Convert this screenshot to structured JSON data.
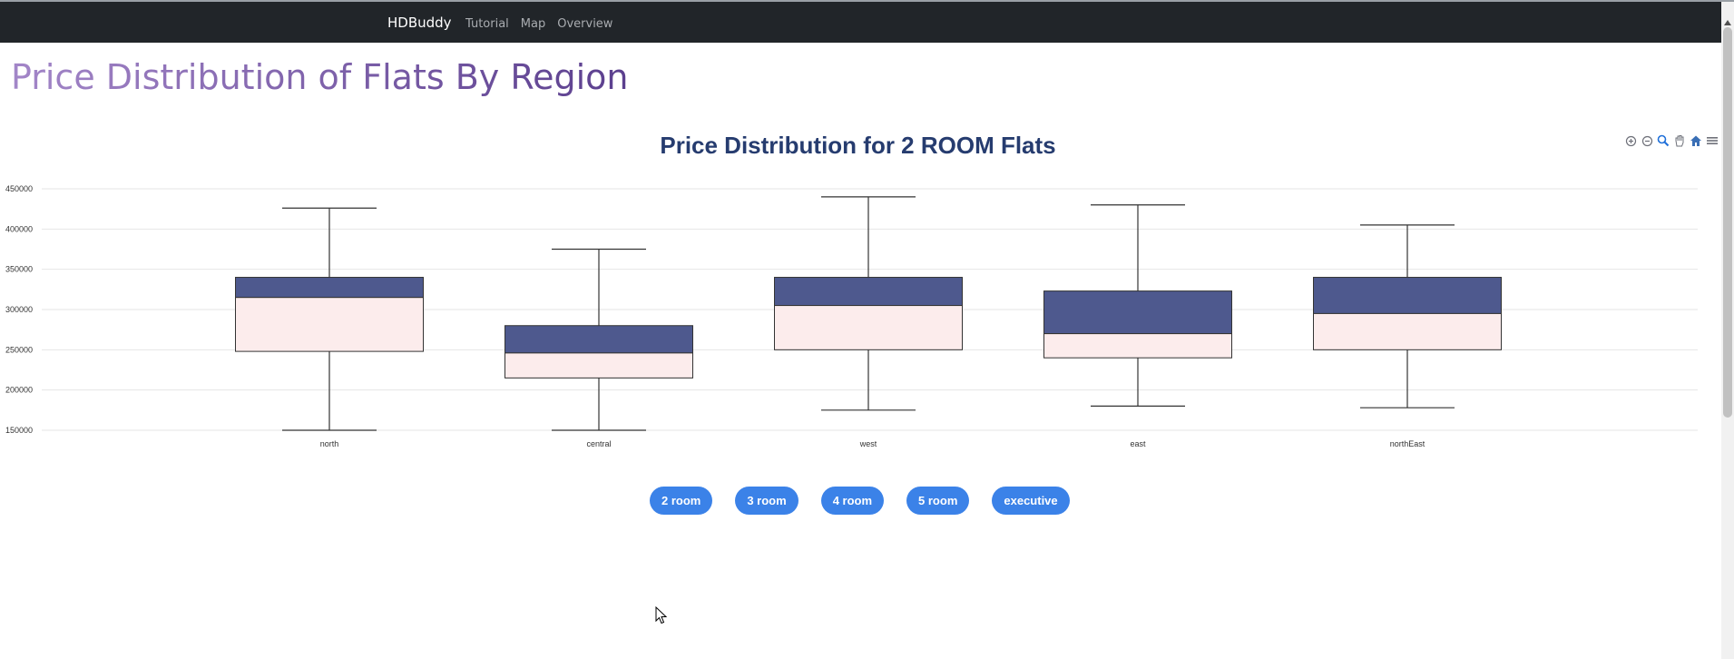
{
  "navbar": {
    "brand": "HDBuddy",
    "links": [
      "Tutorial",
      "Map",
      "Overview"
    ]
  },
  "page": {
    "title": "Price Distribution of Flats By Region"
  },
  "toolbar": {
    "icons": [
      "zoom-in-icon",
      "zoom-out-icon",
      "selection-zoom-icon",
      "pan-hand-icon",
      "home-reset-icon",
      "menu-icon"
    ]
  },
  "chart_data": {
    "type": "boxplot",
    "title": "Price Distribution for 2 ROOM Flats",
    "xlabel": "",
    "ylabel": "",
    "categories": [
      "north",
      "central",
      "west",
      "east",
      "northEast"
    ],
    "ylim": [
      150000,
      450000
    ],
    "yticks": [
      150000,
      200000,
      250000,
      300000,
      350000,
      400000,
      450000
    ],
    "ytick_labels": [
      "150000",
      "200000",
      "250000",
      "300000",
      "350000",
      "400000",
      "450000"
    ],
    "grid": true,
    "colors": {
      "upper_box": "#4e598e",
      "lower_box": "#fcecec",
      "whisker": "#333333",
      "grid": "#e6e6e6"
    },
    "series": [
      {
        "category": "north",
        "min": 150000,
        "q1": 248000,
        "median": 315000,
        "q3": 340000,
        "max": 426000
      },
      {
        "category": "central",
        "min": 150000,
        "q1": 215000,
        "median": 246000,
        "q3": 280000,
        "max": 375000
      },
      {
        "category": "west",
        "min": 175000,
        "q1": 250000,
        "median": 305000,
        "q3": 340000,
        "max": 440000
      },
      {
        "category": "east",
        "min": 180000,
        "q1": 240000,
        "median": 270000,
        "q3": 323000,
        "max": 430000
      },
      {
        "category": "northEast",
        "min": 178000,
        "q1": 250000,
        "median": 295000,
        "q3": 340000,
        "max": 405000
      }
    ]
  },
  "buttons": {
    "room2": "2 room",
    "room3": "3 room",
    "room4": "4 room",
    "room5": "5 room",
    "executive": "executive"
  }
}
